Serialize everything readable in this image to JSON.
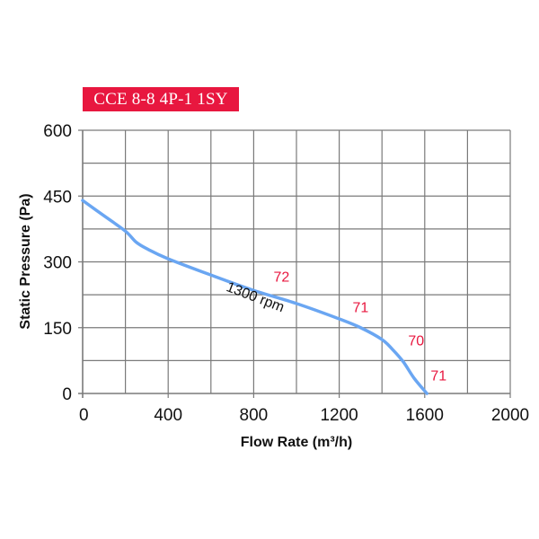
{
  "title": "CCE 8-8 4P-1 1SY",
  "colors": {
    "title_bg": "#e8173f",
    "curve": "#6aa6f2",
    "grid": "#7a7a7a",
    "noise_label": "#e8173f"
  },
  "chart_data": {
    "type": "line",
    "title": "CCE 8-8 4P-1 1SY",
    "xlabel": "Flow Rate (m³/h)",
    "ylabel": "Static Pressure (Pa)",
    "xlim": [
      0,
      2000
    ],
    "ylim": [
      0,
      600
    ],
    "xticks": [
      0,
      400,
      800,
      1200,
      1600,
      2000
    ],
    "yticks": [
      0,
      150,
      300,
      450,
      600
    ],
    "x_grid_step": 200,
    "y_grid_step": 75,
    "grid": true,
    "series": [
      {
        "name": "1300 rpm",
        "x": [
          0,
          100,
          200,
          250,
          300,
          400,
          600,
          800,
          1000,
          1200,
          1300,
          1400,
          1450,
          1500,
          1550,
          1610
        ],
        "y": [
          440,
          405,
          370,
          345,
          330,
          307,
          270,
          235,
          205,
          170,
          150,
          123,
          100,
          72,
          35,
          0
        ]
      }
    ],
    "annotations": [
      {
        "text": "1300 rpm",
        "x": 800,
        "y": 210,
        "rotation": 21,
        "kind": "curve-label"
      },
      {
        "text": "72",
        "x": 930,
        "y": 255,
        "kind": "noise-level"
      },
      {
        "text": "71",
        "x": 1300,
        "y": 185,
        "kind": "noise-level"
      },
      {
        "text": "70",
        "x": 1560,
        "y": 110,
        "kind": "noise-level"
      },
      {
        "text": "71",
        "x": 1665,
        "y": 30,
        "kind": "noise-level"
      }
    ]
  }
}
